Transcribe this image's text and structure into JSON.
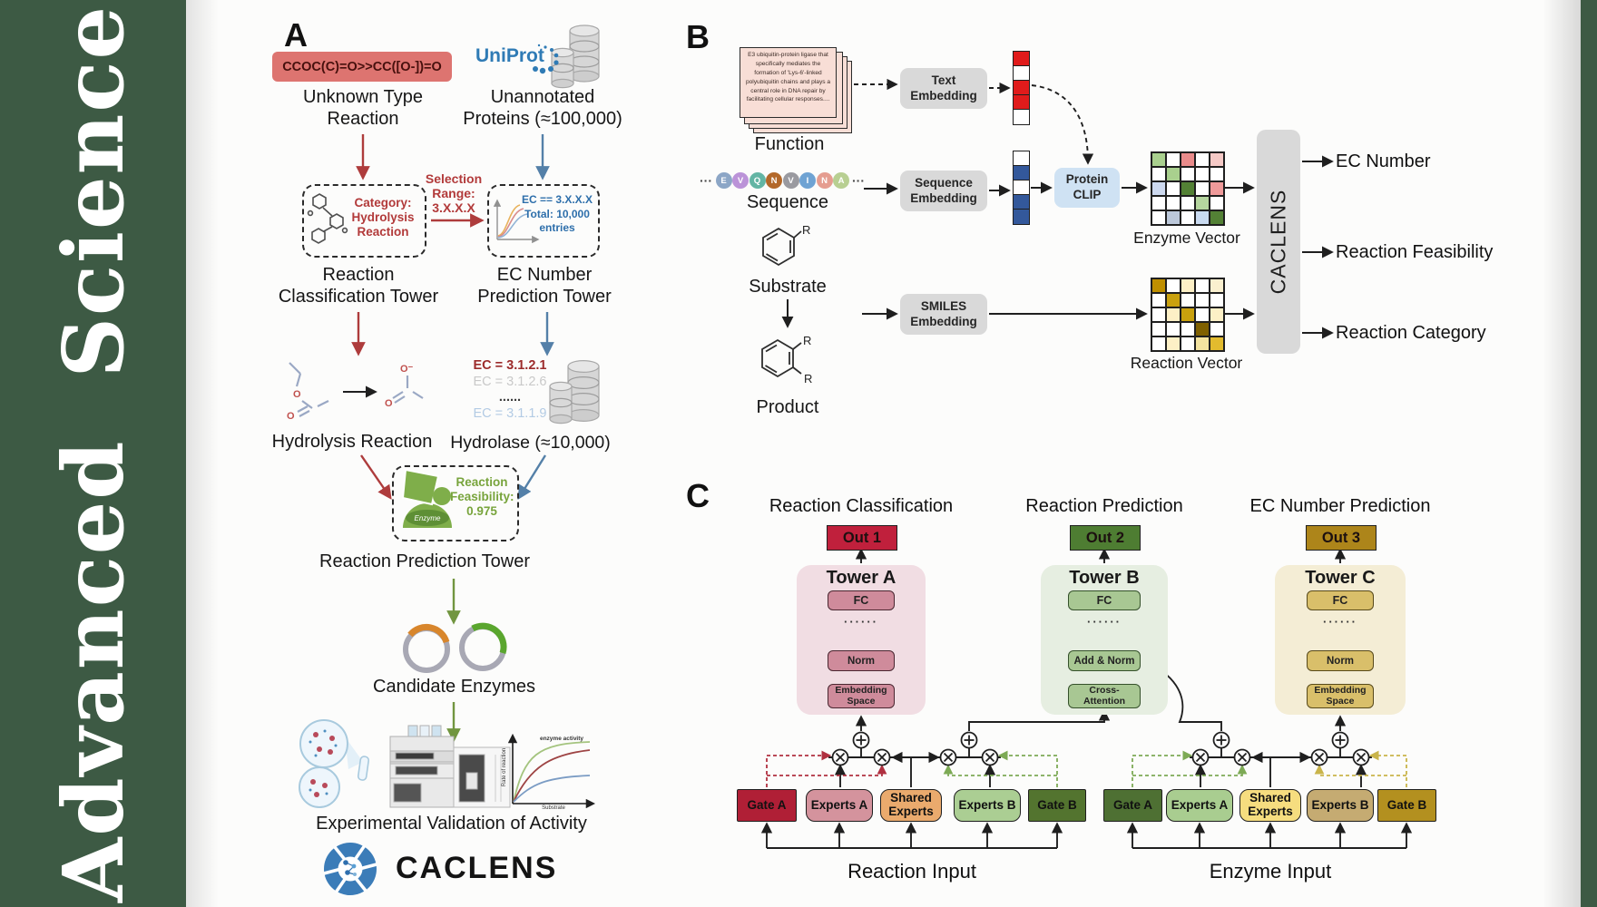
{
  "journal": {
    "name": "Advanced Science",
    "banner_color": "#3d5a44"
  },
  "panelA": {
    "label": "A",
    "smiles": "CCOC(C)=O>>CC([O-])=O",
    "unknown_type": "Unknown Type\nReaction",
    "uniprot": "UniProt",
    "unannotated": "Unannotated\nProteins (≈100,000)",
    "selection": "Selection\nRange:\n3.X.X.X",
    "category": "Category:\nHydrolysis\nReaction",
    "ec_condition": "EC == 3.X.X.X\nTotal: 10,000\nentries",
    "reaction_tower": "Reaction\nClassification Tower",
    "ec_tower": "EC Number\nPrediction Tower",
    "ec_list": [
      {
        "text": "EC = 3.1.2.1",
        "color": "#9c2b2b",
        "bold": true
      },
      {
        "text": "EC = 3.1.2.6",
        "color": "#c9c9c9",
        "bold": false
      },
      {
        "text": "......",
        "color": "#3d3d3d",
        "bold": true
      },
      {
        "text": "EC = 3.1.1.9",
        "color": "#b3cbe4",
        "bold": false
      }
    ],
    "hydrolysis": "Hydrolysis Reaction",
    "hydrolase": "Hydrolase (≈10,000)",
    "enzyme_badge": "Enzyme",
    "feasibility": "Reaction\nFeasibility:\n0.975",
    "prediction_tower": "Reaction Prediction Tower",
    "candidate": "Candidate Enzymes",
    "validation": "Experimental Validation of Activity",
    "brand": "CACLENS",
    "mol": {
      "o": "O",
      "ominus": "O⁻"
    },
    "graph": {
      "annotation": "enzyme activity",
      "ylabel": "Rate of reaction",
      "xlabel": "Substrate"
    }
  },
  "panelB": {
    "label": "B",
    "function_card": "E3 ubiquitin-protein ligase that specifically mediates the formation of 'Lys-6'-linked polyubiquitin chains and plays a central role in DNA repair by facilitating cellular responses....",
    "function_label": "Function",
    "dots": "···",
    "sequence": [
      {
        "ch": "E",
        "color": "#8ca6c6"
      },
      {
        "ch": "V",
        "color": "#bb93d8"
      },
      {
        "ch": "Q",
        "color": "#63b5a4"
      },
      {
        "ch": "N",
        "color": "#b3682a"
      },
      {
        "ch": "V",
        "color": "#9a9aa0"
      },
      {
        "ch": "I",
        "color": "#6fa3d3"
      },
      {
        "ch": "N",
        "color": "#e59d90"
      },
      {
        "ch": "A",
        "color": "#b8cf92"
      }
    ],
    "sequence_label": "Sequence",
    "substrate_label": "Substrate",
    "product_label": "Product",
    "r": "R",
    "text_embedding": "Text\nEmbedding",
    "sequence_embedding": "Sequence\nEmbedding",
    "smiles_embedding": "SMILES\nEmbedding",
    "protein_clip": "Protein\nCLIP",
    "protein_clip_color": "#cfe2f3",
    "text_vector": [
      "#e01b1b",
      "#ffffff",
      "#e01b1b",
      "#e01b1b",
      "#ffffff"
    ],
    "seq_vector": [
      "#ffffff",
      "#33589b",
      "#ffffff",
      "#33589b",
      "#33589b"
    ],
    "enzyme_vector_label": "Enzyme Vector",
    "reaction_vector_label": "Reaction Vector",
    "enzyme_matrix": [
      [
        "#a9d08e",
        "#ffffff",
        "#e98b8b",
        "#ffffff",
        "#f5c9c6"
      ],
      [
        "#ffffff",
        "#a9d08e",
        "#ffffff",
        "#ffffff",
        "#ffffff"
      ],
      [
        "#cdd9ef",
        "#ffffff",
        "#538135",
        "#ffffff",
        "#ef9a9a"
      ],
      [
        "#ffffff",
        "#ffffff",
        "#ffffff",
        "#b5d69f",
        "#ffffff"
      ],
      [
        "#ffffff",
        "#bcc8da",
        "#ffffff",
        "#c9daf0",
        "#538135"
      ]
    ],
    "reaction_matrix": [
      [
        "#bf8f00",
        "#ffffff",
        "#fdf0c6",
        "#ffffff",
        "#faf0cf"
      ],
      [
        "#ffffff",
        "#c9a10e",
        "#ffffff",
        "#ffffff",
        "#ffffff"
      ],
      [
        "#ffffff",
        "#fdf0c6",
        "#c9a10e",
        "#ffffff",
        "#fdf0c6"
      ],
      [
        "#ffffff",
        "#ffffff",
        "#ffffff",
        "#7f6000",
        "#ffffff"
      ],
      [
        "#ffffff",
        "#fdf0c6",
        "#ffffff",
        "#f3e3a0",
        "#e2bb2e"
      ]
    ],
    "caclens_bar": "CACLENS",
    "outputs": [
      "EC Number",
      "Reaction Feasibility",
      "Reaction Category"
    ]
  },
  "panelC": {
    "label": "C",
    "headers": [
      "Reaction Classification",
      "Reaction Prediction",
      "EC Number Prediction"
    ],
    "outs": [
      {
        "text": "Out 1",
        "color": "#c0203c"
      },
      {
        "text": "Out 2",
        "color": "#4e7d32"
      },
      {
        "text": "Out 3",
        "color": "#ad851a"
      }
    ],
    "towers": [
      {
        "title": "Tower A",
        "bg": "#f1dde3",
        "box": "#cf8b9b",
        "border": "#4a2630",
        "blocks": [
          "FC",
          "······",
          "Norm",
          "Embedding\nSpace"
        ]
      },
      {
        "title": "Tower B",
        "bg": "#e6eee1",
        "box": "#a8c793",
        "border": "#34502a",
        "blocks": [
          "FC",
          "······",
          "Add & Norm",
          "Cross-\nAttention"
        ]
      },
      {
        "title": "Tower C",
        "bg": "#f4edd5",
        "box": "#d9bf6a",
        "border": "#57491a",
        "blocks": [
          "FC",
          "······",
          "Norm",
          "Embedding\nSpace"
        ]
      }
    ],
    "moe_left": [
      {
        "text": "Gate A",
        "bg": "#b01f36"
      },
      {
        "text": "Experts A",
        "bg": "#d4939d"
      },
      {
        "text": "Shared\nExperts",
        "bg": "#eaaa6d"
      },
      {
        "text": "Experts B",
        "bg": "#abce93"
      },
      {
        "text": "Gate B",
        "bg": "#53742f"
      }
    ],
    "moe_right": [
      {
        "text": "Gate A",
        "bg": "#4e7033"
      },
      {
        "text": "Experts A",
        "bg": "#a9cd90"
      },
      {
        "text": "Shared\nExperts",
        "bg": "#f6dd7f"
      },
      {
        "text": "Experts B",
        "bg": "#c5ab72"
      },
      {
        "text": "Gate B",
        "bg": "#b3901f"
      }
    ],
    "inputs": [
      "Reaction Input",
      "Enzyme Input"
    ]
  }
}
